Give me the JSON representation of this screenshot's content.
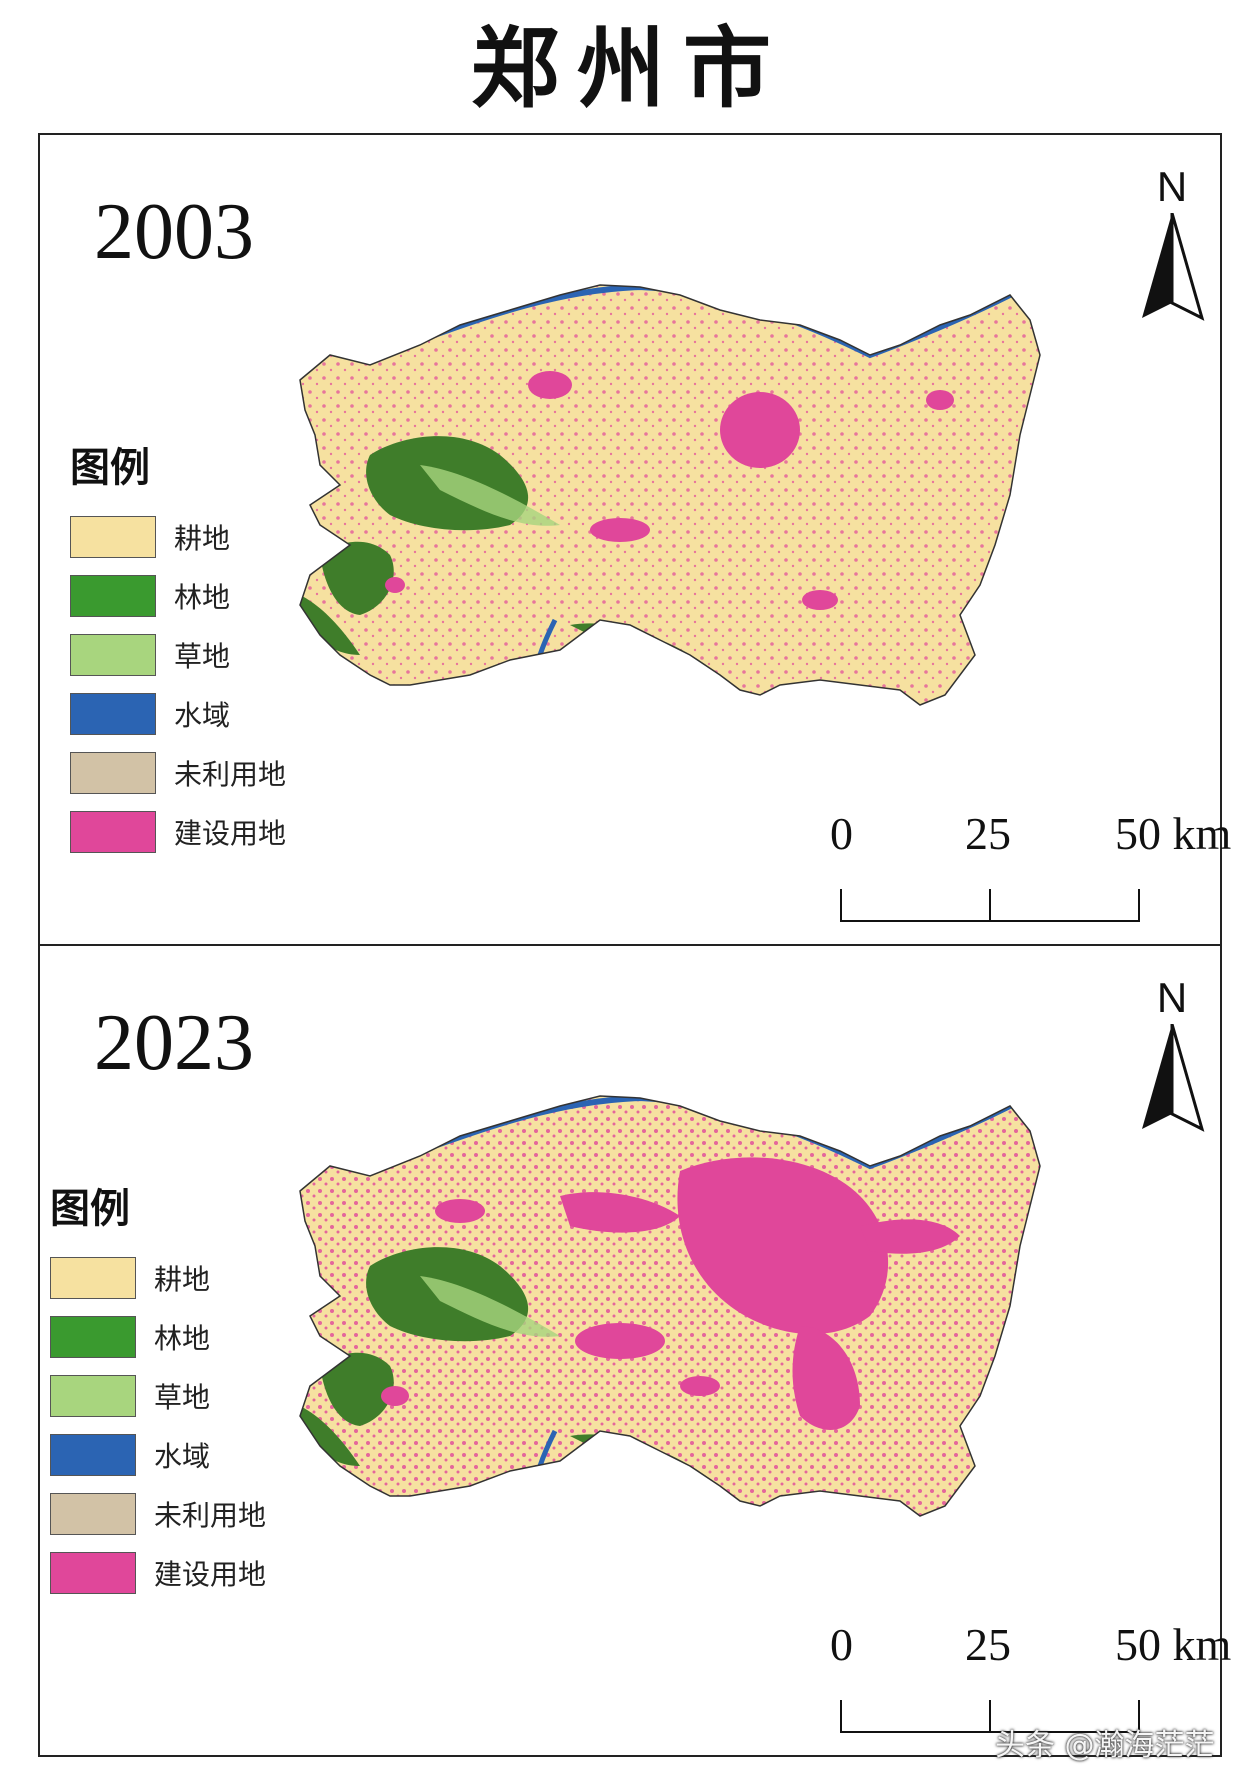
{
  "title": "郑州市",
  "panels": [
    {
      "year": "2003",
      "north": "N",
      "north_arrow_icon": "north-arrow-icon"
    },
    {
      "year": "2023",
      "north": "N",
      "north_arrow_icon": "north-arrow-icon"
    }
  ],
  "legend": {
    "title": "图例",
    "items": [
      {
        "label": "耕地",
        "color": "#f6e1a0"
      },
      {
        "label": "林地",
        "color": "#3a9a2f"
      },
      {
        "label": "草地",
        "color": "#a8d57e"
      },
      {
        "label": "水域",
        "color": "#2b64b3"
      },
      {
        "label": "未利用地",
        "color": "#d2c2a6"
      },
      {
        "label": "建设用地",
        "color": "#e0479a"
      }
    ]
  },
  "scalebar": {
    "labels": [
      "0",
      "25",
      "50 km"
    ]
  },
  "watermark": "头条 @瀚海茫茫"
}
